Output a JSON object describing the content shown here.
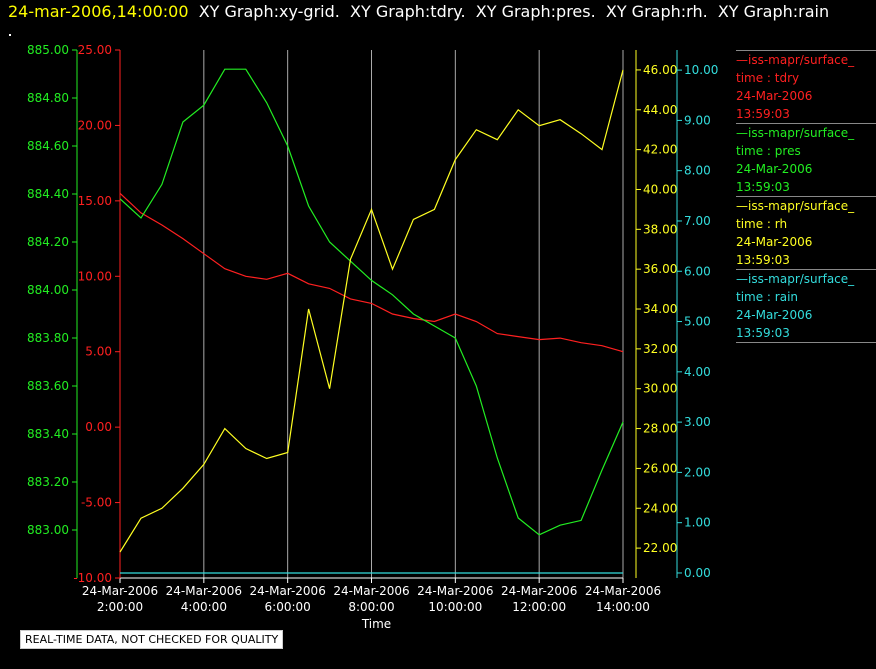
{
  "header": {
    "date": "24-mar-2006,14:00:00",
    "graphs": "  XY Graph:xy-grid.  XY Graph:tdry.  XY Graph:pres.  XY Graph:rh.  XY Graph:rain"
  },
  "quality_note": "REAL-TIME DATA, NOT CHECKED FOR QUALITY",
  "colors": {
    "tdry": "#ff2020",
    "pres": "#22ee22",
    "rh": "#ffff22",
    "rain": "#33dddd",
    "grid": "#aaaaaa"
  },
  "legend": [
    {
      "source": "—iss-mapr/surface_",
      "field": "time : tdry",
      "date": "24-Mar-2006",
      "time": "13:59:03",
      "color": "#ff2020"
    },
    {
      "source": "—iss-mapr/surface_",
      "field": "time : pres",
      "date": "24-Mar-2006",
      "time": "13:59:03",
      "color": "#22ee22"
    },
    {
      "source": "—iss-mapr/surface_",
      "field": "time : rh",
      "date": "24-Mar-2006",
      "time": "13:59:03",
      "color": "#ffff22"
    },
    {
      "source": "—iss-mapr/surface_",
      "field": "time : rain",
      "date": "24-Mar-2006",
      "time": "13:59:03",
      "color": "#33dddd"
    }
  ],
  "chart_data": {
    "type": "line",
    "xlabel": "Time",
    "x_tick_labels": [
      [
        "24-Mar-2006",
        "2:00:00"
      ],
      [
        "24-Mar-2006",
        "4:00:00"
      ],
      [
        "24-Mar-2006",
        "6:00:00"
      ],
      [
        "24-Mar-2006",
        "8:00:00"
      ],
      [
        "24-Mar-2006",
        "10:00:00"
      ],
      [
        "24-Mar-2006",
        "12:00:00"
      ],
      [
        "24-Mar-2006",
        "14:00:00"
      ]
    ],
    "xlim": [
      "24-Mar-2006 2:00:00",
      "24-Mar-2006 14:00:00"
    ],
    "x": [
      "02:00",
      "02:30",
      "03:00",
      "03:30",
      "04:00",
      "04:30",
      "05:00",
      "05:30",
      "06:00",
      "06:30",
      "07:00",
      "07:30",
      "08:00",
      "08:30",
      "09:00",
      "09:30",
      "10:00",
      "10:30",
      "11:00",
      "11:30",
      "12:00",
      "12:30",
      "13:00",
      "13:30",
      "14:00"
    ],
    "grid": true,
    "axes": [
      {
        "name": "tdry",
        "side": "left",
        "ylim": [
          -10,
          25
        ],
        "ticks": [
          "25.00",
          "20.00",
          "15.00",
          "10.00",
          "5.00",
          "0.00",
          "-5.00",
          "-10.00"
        ]
      },
      {
        "name": "pres",
        "side": "left",
        "ylim": [
          882.8,
          885.0
        ],
        "ticks": [
          "885.00",
          "884.80",
          "884.60",
          "884.40",
          "884.20",
          "884.00",
          "883.80",
          "883.60",
          "883.40",
          "883.20",
          "883.00"
        ]
      },
      {
        "name": "rh",
        "side": "right",
        "ylim": [
          20.5,
          47.0
        ],
        "ticks": [
          "46.00",
          "44.00",
          "42.00",
          "40.00",
          "38.00",
          "36.00",
          "34.00",
          "32.00",
          "30.00",
          "28.00",
          "26.00",
          "24.00",
          "22.00"
        ]
      },
      {
        "name": "rain",
        "side": "right",
        "ylim": [
          -0.1,
          10.4
        ],
        "ticks": [
          "10.00",
          "9.00",
          "8.00",
          "7.00",
          "6.00",
          "5.00",
          "4.00",
          "3.00",
          "2.00",
          "1.00",
          "0.00"
        ]
      }
    ],
    "series": [
      {
        "name": "tdry",
        "axis": "tdry",
        "values": [
          15.5,
          14.2,
          13.4,
          12.5,
          11.5,
          10.5,
          10.0,
          9.8,
          10.2,
          9.5,
          9.2,
          8.5,
          8.2,
          7.5,
          7.2,
          7.0,
          7.5,
          7.0,
          6.2,
          6.0,
          5.8,
          5.9,
          5.6,
          5.4,
          5.0
        ]
      },
      {
        "name": "pres",
        "axis": "pres",
        "values": [
          884.38,
          884.3,
          884.44,
          884.7,
          884.77,
          884.92,
          884.92,
          884.78,
          884.6,
          884.35,
          884.2,
          884.12,
          884.04,
          883.98,
          883.9,
          883.85,
          883.8,
          883.6,
          883.3,
          883.05,
          882.98,
          883.02,
          883.04,
          883.25,
          883.45
        ]
      },
      {
        "name": "rh",
        "axis": "rh",
        "values": [
          21.8,
          23.5,
          24.0,
          25.0,
          26.2,
          28.0,
          27.0,
          26.5,
          26.8,
          34.0,
          30.0,
          36.5,
          39.0,
          36.0,
          38.5,
          39.0,
          41.5,
          43.0,
          42.5,
          44.0,
          43.2,
          43.5,
          42.8,
          42.0,
          46.0
        ]
      },
      {
        "name": "rain",
        "axis": "rain",
        "values": [
          0.0,
          0.0,
          0.0,
          0.0,
          0.0,
          0.0,
          0.0,
          0.0,
          0.0,
          0.0,
          0.0,
          0.0,
          0.0,
          0.0,
          0.0,
          0.0,
          0.0,
          0.0,
          0.0,
          0.0,
          0.0,
          0.0,
          0.0,
          0.0,
          0.0
        ]
      }
    ]
  }
}
